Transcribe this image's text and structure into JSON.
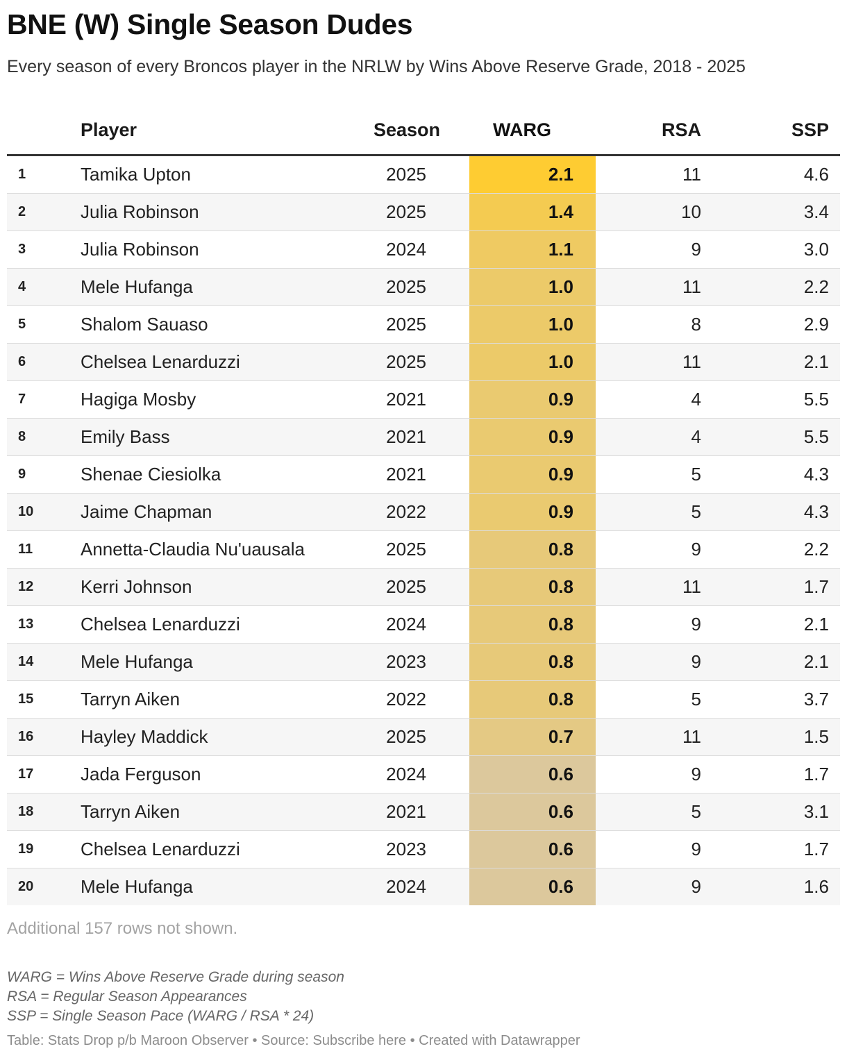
{
  "title": "BNE (W) Single Season Dudes",
  "subtitle": "Every season of every Broncos player in the NRLW by Wins Above Reserve Grade, 2018 - 2025",
  "columns": {
    "player": "Player",
    "season": "Season",
    "warg": "WARG",
    "rsa": "RSA",
    "ssp": "SSP"
  },
  "colors": {
    "warg_high": "#fecc32",
    "warg_low": "#dcc89c",
    "header_rule": "#333333",
    "row_alt": "#f6f6f6"
  },
  "chart_data": {
    "type": "table",
    "warg_color_range": [
      0.6,
      2.1
    ],
    "rows": [
      {
        "rank": "1",
        "player": "Tamika Upton",
        "season": "2025",
        "warg": "2.1",
        "rsa": "11",
        "ssp": "4.6"
      },
      {
        "rank": "2",
        "player": "Julia Robinson",
        "season": "2025",
        "warg": "1.4",
        "rsa": "10",
        "ssp": "3.4"
      },
      {
        "rank": "3",
        "player": "Julia Robinson",
        "season": "2024",
        "warg": "1.1",
        "rsa": "9",
        "ssp": "3.0"
      },
      {
        "rank": "4",
        "player": "Mele Hufanga",
        "season": "2025",
        "warg": "1.0",
        "rsa": "11",
        "ssp": "2.2"
      },
      {
        "rank": "5",
        "player": "Shalom Sauaso",
        "season": "2025",
        "warg": "1.0",
        "rsa": "8",
        "ssp": "2.9"
      },
      {
        "rank": "6",
        "player": "Chelsea Lenarduzzi",
        "season": "2025",
        "warg": "1.0",
        "rsa": "11",
        "ssp": "2.1"
      },
      {
        "rank": "7",
        "player": "Hagiga Mosby",
        "season": "2021",
        "warg": "0.9",
        "rsa": "4",
        "ssp": "5.5"
      },
      {
        "rank": "8",
        "player": "Emily Bass",
        "season": "2021",
        "warg": "0.9",
        "rsa": "4",
        "ssp": "5.5"
      },
      {
        "rank": "9",
        "player": "Shenae Ciesiolka",
        "season": "2021",
        "warg": "0.9",
        "rsa": "5",
        "ssp": "4.3"
      },
      {
        "rank": "10",
        "player": "Jaime Chapman",
        "season": "2022",
        "warg": "0.9",
        "rsa": "5",
        "ssp": "4.3"
      },
      {
        "rank": "11",
        "player": "Annetta-Claudia Nu'uausala",
        "season": "2025",
        "warg": "0.8",
        "rsa": "9",
        "ssp": "2.2"
      },
      {
        "rank": "12",
        "player": "Kerri Johnson",
        "season": "2025",
        "warg": "0.8",
        "rsa": "11",
        "ssp": "1.7"
      },
      {
        "rank": "13",
        "player": "Chelsea Lenarduzzi",
        "season": "2024",
        "warg": "0.8",
        "rsa": "9",
        "ssp": "2.1"
      },
      {
        "rank": "14",
        "player": "Mele Hufanga",
        "season": "2023",
        "warg": "0.8",
        "rsa": "9",
        "ssp": "2.1"
      },
      {
        "rank": "15",
        "player": "Tarryn Aiken",
        "season": "2022",
        "warg": "0.8",
        "rsa": "5",
        "ssp": "3.7"
      },
      {
        "rank": "16",
        "player": "Hayley Maddick",
        "season": "2025",
        "warg": "0.7",
        "rsa": "11",
        "ssp": "1.5"
      },
      {
        "rank": "17",
        "player": "Jada Ferguson",
        "season": "2024",
        "warg": "0.6",
        "rsa": "9",
        "ssp": "1.7"
      },
      {
        "rank": "18",
        "player": "Tarryn Aiken",
        "season": "2021",
        "warg": "0.6",
        "rsa": "5",
        "ssp": "3.1"
      },
      {
        "rank": "19",
        "player": "Chelsea Lenarduzzi",
        "season": "2023",
        "warg": "0.6",
        "rsa": "9",
        "ssp": "1.7"
      },
      {
        "rank": "20",
        "player": "Mele Hufanga",
        "season": "2024",
        "warg": "0.6",
        "rsa": "9",
        "ssp": "1.6"
      }
    ]
  },
  "more_rows_note": "Additional 157 rows not shown.",
  "notes": [
    "WARG = Wins Above Reserve Grade during season",
    "RSA = Regular Season Appearances",
    "SSP = Single Season Pace (WARG / RSA * 24)"
  ],
  "footer": "Table: Stats Drop p/b Maroon Observer • Source: Subscribe here • Created with Datawrapper"
}
